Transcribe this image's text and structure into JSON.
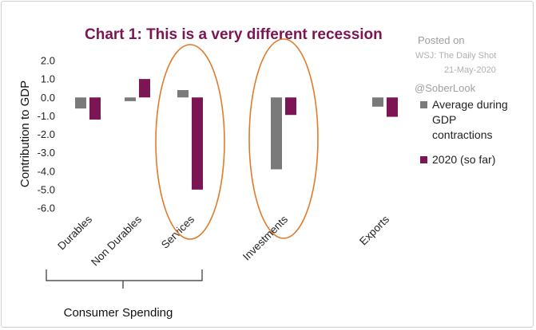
{
  "chart_data": {
    "type": "bar",
    "title": "Chart 1: This is a very different recession",
    "ylabel": "Contribution to GDP",
    "ylim": [
      -6.0,
      2.0
    ],
    "yticks": [
      "2.0",
      "1.0",
      "0.0",
      "-1.0",
      "-2.0",
      "-3.0",
      "-4.0",
      "-5.0",
      "-6.0"
    ],
    "categories": [
      "Durables",
      "Non Durables",
      "Services",
      "Investments",
      "Exports"
    ],
    "series": [
      {
        "name": "Average during GDP contractions",
        "color": "#7a7a7a",
        "values": [
          -0.6,
          -0.2,
          0.4,
          -3.9,
          -0.5
        ]
      },
      {
        "name": "2020 (so far)",
        "color": "#7b1553",
        "values": [
          -1.2,
          1.0,
          -5.0,
          -0.95,
          -1.05
        ]
      }
    ],
    "legend_position": "right",
    "legend_lines": [
      [
        "Average during",
        "GDP",
        "contractions"
      ],
      [
        "2020 (so far)"
      ]
    ],
    "group_label": "Consumer Spending",
    "highlighted_categories": [
      "Services",
      "Investments"
    ],
    "highlight_color": "#e07b2c",
    "title_color": "#7b1553"
  },
  "watermark": {
    "line1": "Posted on",
    "line2": "WSJ: The Daily Shot",
    "line3": "21-May-2020",
    "handle": "@SoberLook"
  }
}
